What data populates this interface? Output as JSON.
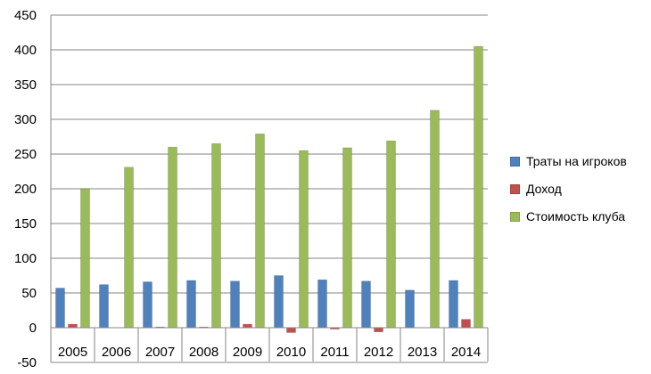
{
  "chart_data": {
    "type": "bar",
    "categories": [
      "2005",
      "2006",
      "2007",
      "2008",
      "2009",
      "2010",
      "2011",
      "2012",
      "2013",
      "2014"
    ],
    "series": [
      {
        "name": "Траты на игроков",
        "color": "#4f81bd",
        "values": [
          57,
          62,
          66,
          68,
          67,
          75,
          69,
          67,
          54,
          68
        ]
      },
      {
        "name": "Доход",
        "color": "#c0504d",
        "values": [
          5,
          0,
          1,
          1,
          5,
          -7,
          -2,
          -6,
          0,
          12
        ]
      },
      {
        "name": "Стоимость клуба",
        "color": "#9bbb59",
        "values": [
          200,
          231,
          260,
          265,
          279,
          255,
          259,
          269,
          313,
          405
        ]
      }
    ],
    "ylim": [
      -50,
      450
    ],
    "yticks": [
      "-50",
      "0",
      "50",
      "100",
      "150",
      "200",
      "250",
      "300",
      "350",
      "400",
      "450"
    ],
    "grid": true,
    "legend_position": "right",
    "title": "",
    "xlabel": "",
    "ylabel": ""
  }
}
